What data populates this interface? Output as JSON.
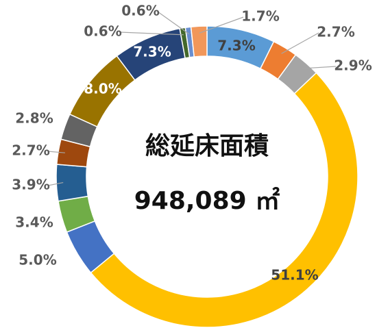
{
  "chart_data": {
    "type": "donut",
    "center_text": [
      "総延床面積",
      "948,089 ㎡"
    ],
    "series": [
      {
        "values": [
          7.3,
          2.7,
          2.9,
          51.1,
          5.0,
          3.4,
          3.9,
          2.7,
          2.8,
          8.0,
          7.3,
          0.6,
          0.6,
          1.7
        ],
        "value_labels": [
          "7.3%",
          "2.7%",
          "2.9%",
          "51.1%",
          "5.0%",
          "3.4%",
          "3.9%",
          "2.7%",
          "2.8%",
          "8.0%",
          "7.3%",
          "0.6%",
          "0.6%",
          "1.7%"
        ],
        "colors": [
          "#5b9bd5",
          "#ed7d31",
          "#a5a5a5",
          "#ffc000",
          "#4472c4",
          "#70ad47",
          "#255e91",
          "#9e480e",
          "#636363",
          "#997300",
          "#264478",
          "#43682b",
          "#698ed0",
          "#f1975a"
        ]
      }
    ]
  }
}
